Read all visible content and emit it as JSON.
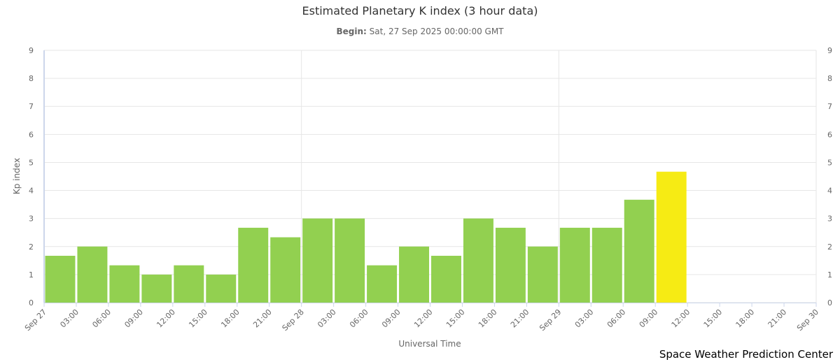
{
  "chart_data": {
    "type": "bar",
    "title": "Estimated Planetary K index (3 hour data)",
    "subtitle_label": "Begin:",
    "subtitle_value": "Sat, 27 Sep 2025 00:00:00 GMT",
    "xlabel": "Universal Time",
    "ylabel": "Kp index",
    "credit": "Space Weather Prediction Center",
    "ylim": [
      0,
      9
    ],
    "yticks": [
      0,
      1,
      2,
      3,
      4,
      5,
      6,
      7,
      8,
      9
    ],
    "x_tick_labels": [
      "Sep 27",
      "03:00",
      "06:00",
      "09:00",
      "12:00",
      "15:00",
      "18:00",
      "21:00",
      "Sep 28",
      "03:00",
      "06:00",
      "09:00",
      "12:00",
      "15:00",
      "18:00",
      "21:00",
      "Sep 29",
      "03:00",
      "06:00",
      "09:00",
      "12:00",
      "15:00",
      "18:00",
      "21:00",
      "Sep 30"
    ],
    "categories": [
      "Sep 27 00:00",
      "Sep 27 03:00",
      "Sep 27 06:00",
      "Sep 27 09:00",
      "Sep 27 12:00",
      "Sep 27 15:00",
      "Sep 27 18:00",
      "Sep 27 21:00",
      "Sep 28 00:00",
      "Sep 28 03:00",
      "Sep 28 06:00",
      "Sep 28 09:00",
      "Sep 28 12:00",
      "Sep 28 15:00",
      "Sep 28 18:00",
      "Sep 28 21:00",
      "Sep 29 00:00",
      "Sep 29 03:00",
      "Sep 29 06:00",
      "Sep 29 09:00"
    ],
    "values": [
      1.67,
      2.0,
      1.33,
      1.0,
      1.33,
      1.0,
      2.67,
      2.33,
      3.0,
      3.0,
      1.33,
      2.0,
      1.67,
      3.0,
      2.67,
      2.0,
      2.67,
      2.67,
      3.67,
      4.67
    ],
    "colors": {
      "below_storm": "#92d050",
      "active": "#f6eb14",
      "grid": "#e6e6e6",
      "axis": "#ccd6eb",
      "tick_text": "#666666"
    },
    "grid": true
  }
}
